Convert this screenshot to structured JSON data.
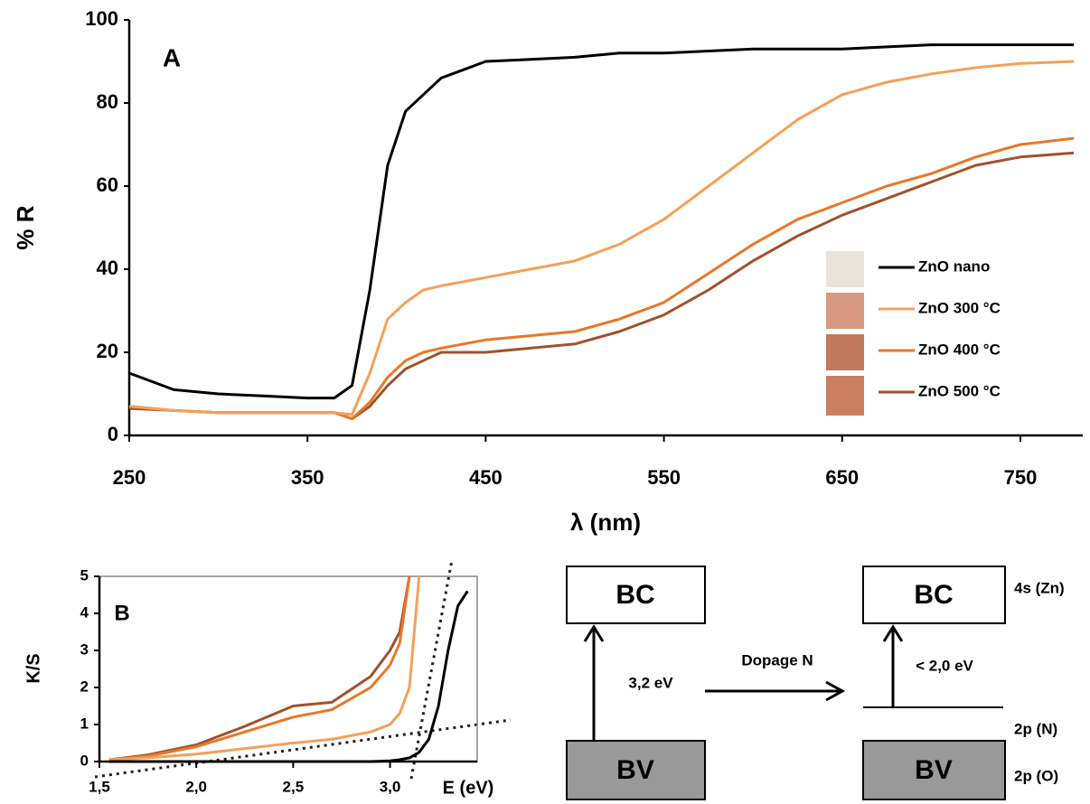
{
  "chart_data": [
    {
      "type": "line",
      "annotation": "A",
      "x_label": "λ (nm)",
      "y_label": "% R",
      "x": [
        250,
        275,
        300,
        325,
        350,
        365,
        375,
        385,
        395,
        405,
        415,
        425,
        450,
        475,
        500,
        525,
        550,
        575,
        600,
        625,
        650,
        675,
        700,
        725,
        750,
        780
      ],
      "series": [
        {
          "name": "ZnO nano",
          "color": "#000000",
          "values": [
            15,
            11,
            10,
            9.5,
            9,
            9,
            12,
            35,
            65,
            78,
            82,
            86,
            90,
            90.5,
            91,
            92,
            92,
            92.5,
            93,
            93,
            93,
            93.5,
            94,
            94,
            94,
            94
          ]
        },
        {
          "name": "ZnO 300 °C",
          "color": "#f5a05a",
          "values": [
            7,
            6,
            5.5,
            5.5,
            5.5,
            5.5,
            5,
            15,
            28,
            32,
            35,
            36,
            38,
            40,
            42,
            46,
            52,
            60,
            68,
            76,
            82,
            85,
            87,
            88.5,
            89.5,
            90
          ]
        },
        {
          "name": "ZnO 400 °C",
          "color": "#e8782a",
          "values": [
            7,
            6,
            5.5,
            5.5,
            5.5,
            5.5,
            4,
            8,
            14,
            18,
            20,
            21,
            23,
            24,
            25,
            28,
            32,
            39,
            46,
            52,
            56,
            60,
            63,
            67,
            70,
            71.5
          ]
        },
        {
          "name": "ZnO 500 °C",
          "color": "#a0522d",
          "values": [
            6.5,
            6,
            5.5,
            5.5,
            5.5,
            5.5,
            4,
            7,
            12,
            16,
            18,
            20,
            20,
            21,
            22,
            25,
            29,
            35,
            42,
            48,
            53,
            57,
            61,
            65,
            67,
            68
          ]
        }
      ],
      "xlim": [
        250,
        785
      ],
      "xticks": [
        250,
        350,
        450,
        550,
        650,
        750
      ],
      "ylim": [
        0,
        100
      ],
      "yticks": [
        0,
        20,
        40,
        60,
        80,
        100
      ]
    },
    {
      "type": "line",
      "annotation": "B",
      "x_label": "E (eV)",
      "y_label": "K/S",
      "x": [
        1.55,
        1.75,
        2.0,
        2.25,
        2.5,
        2.7,
        2.9,
        3.0,
        3.05,
        3.1,
        3.15,
        3.2,
        3.25,
        3.3,
        3.35,
        3.4
      ],
      "series": [
        {
          "color": "#000000",
          "values": [
            0,
            0,
            0,
            0,
            0,
            0,
            0,
            0.02,
            0.05,
            0.1,
            0.25,
            0.6,
            1.5,
            3,
            4.2,
            4.6
          ]
        },
        {
          "color": "#f5a05a",
          "values": [
            0.05,
            0.1,
            0.2,
            0.35,
            0.5,
            0.6,
            0.8,
            1.0,
            1.3,
            2.0,
            5,
            null,
            null,
            null,
            null,
            null
          ]
        },
        {
          "color": "#e8782a",
          "values": [
            0.05,
            0.15,
            0.4,
            0.8,
            1.2,
            1.4,
            2.0,
            2.6,
            3.2,
            5,
            null,
            null,
            null,
            null,
            null,
            null
          ]
        },
        {
          "color": "#a0522d",
          "values": [
            0.05,
            0.18,
            0.45,
            0.95,
            1.5,
            1.6,
            2.3,
            3.0,
            3.5,
            5,
            null,
            null,
            null,
            null,
            null,
            null
          ]
        }
      ],
      "xlim": [
        1.5,
        3.45
      ],
      "xticks": [
        {
          "value": 1.5,
          "label": "1,5"
        },
        {
          "value": 2.0,
          "label": "2,0"
        },
        {
          "value": 2.5,
          "label": "2,5"
        },
        {
          "value": 3.0,
          "label": "3,0"
        }
      ],
      "ylim": [
        0,
        5
      ],
      "yticks": [
        0,
        1,
        2,
        3,
        4,
        5
      ]
    }
  ],
  "diagram": {
    "left": {
      "top": "BC",
      "bottom": "BV",
      "gap": "3,2 eV"
    },
    "arrow": "Dopage N",
    "right": {
      "top": "BC",
      "bottom": "BV",
      "gap": "< 2,0 eV"
    },
    "levels": [
      "4s (Zn)",
      "2p (N)",
      "2p (O)"
    ]
  }
}
